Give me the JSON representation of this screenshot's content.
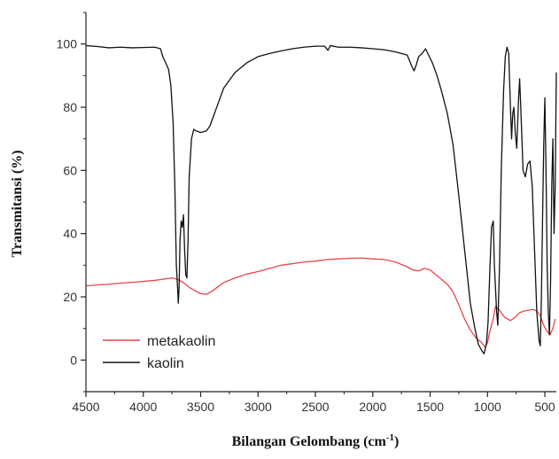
{
  "chart_data": {
    "type": "line",
    "title": "",
    "xlabel": "Bilangan Gelombang (cm",
    "xlabel_superscript": "-1",
    "xlabel_suffix": ")",
    "ylabel": "Transmitansi (%)",
    "xlim": [
      4500,
      400
    ],
    "ylim": [
      -10,
      110
    ],
    "x_reversed": true,
    "x_ticks": [
      4500,
      4000,
      3500,
      3000,
      2500,
      2000,
      1500,
      1000,
      500
    ],
    "x_tick_labels": [
      "4500",
      "4000",
      "3500",
      "3000",
      "2500",
      "2000",
      "1500",
      "1000",
      "500"
    ],
    "y_ticks": [
      0,
      20,
      40,
      60,
      80,
      100
    ],
    "y_tick_labels": [
      "0",
      "20",
      "40",
      "60",
      "80",
      "100"
    ],
    "grid": false,
    "legend_position": "bottom-left",
    "series": [
      {
        "name": "metakaolin",
        "color": "#e8464a",
        "points": [
          [
            4500,
            23.5
          ],
          [
            4300,
            24.0
          ],
          [
            4100,
            24.6
          ],
          [
            3900,
            25.2
          ],
          [
            3750,
            26.0
          ],
          [
            3700,
            25.5
          ],
          [
            3650,
            24.5
          ],
          [
            3600,
            23.0
          ],
          [
            3550,
            22.0
          ],
          [
            3500,
            21.0
          ],
          [
            3450,
            20.8
          ],
          [
            3400,
            21.8
          ],
          [
            3300,
            24.5
          ],
          [
            3200,
            26.0
          ],
          [
            3100,
            27.2
          ],
          [
            3000,
            28.0
          ],
          [
            2900,
            29.0
          ],
          [
            2800,
            30.0
          ],
          [
            2700,
            30.5
          ],
          [
            2600,
            31.0
          ],
          [
            2500,
            31.3
          ],
          [
            2400,
            31.8
          ],
          [
            2300,
            32.0
          ],
          [
            2200,
            32.2
          ],
          [
            2100,
            32.3
          ],
          [
            2000,
            32.0
          ],
          [
            1900,
            31.8
          ],
          [
            1800,
            31.0
          ],
          [
            1700,
            29.5
          ],
          [
            1650,
            28.5
          ],
          [
            1600,
            28.2
          ],
          [
            1550,
            29.0
          ],
          [
            1500,
            28.5
          ],
          [
            1450,
            27.0
          ],
          [
            1400,
            25.5
          ],
          [
            1350,
            24.0
          ],
          [
            1300,
            21.5
          ],
          [
            1250,
            17.5
          ],
          [
            1200,
            13.0
          ],
          [
            1150,
            9.5
          ],
          [
            1100,
            7.0
          ],
          [
            1050,
            5.5
          ],
          [
            1020,
            4.0
          ],
          [
            1000,
            5.5
          ],
          [
            980,
            9.0
          ],
          [
            950,
            13.0
          ],
          [
            930,
            17.0
          ],
          [
            900,
            16.0
          ],
          [
            850,
            13.5
          ],
          [
            800,
            12.5
          ],
          [
            760,
            13.5
          ],
          [
            720,
            15.0
          ],
          [
            680,
            15.5
          ],
          [
            640,
            15.8
          ],
          [
            600,
            16.0
          ],
          [
            570,
            15.5
          ],
          [
            540,
            14.0
          ],
          [
            510,
            11.0
          ],
          [
            480,
            9.0
          ],
          [
            455,
            8.0
          ],
          [
            430,
            10.0
          ],
          [
            410,
            13.0
          ]
        ]
      },
      {
        "name": "kaolin",
        "color": "#111111",
        "points": [
          [
            4500,
            99.5
          ],
          [
            4400,
            99.2
          ],
          [
            4300,
            98.8
          ],
          [
            4200,
            99.0
          ],
          [
            4100,
            98.8
          ],
          [
            4000,
            98.9
          ],
          [
            3900,
            99.0
          ],
          [
            3850,
            98.5
          ],
          [
            3830,
            96.0
          ],
          [
            3810,
            94.5
          ],
          [
            3780,
            92.0
          ],
          [
            3760,
            87.0
          ],
          [
            3740,
            75.0
          ],
          [
            3725,
            55.0
          ],
          [
            3712,
            30.0
          ],
          [
            3700,
            22.0
          ],
          [
            3695,
            18.0
          ],
          [
            3688,
            23.0
          ],
          [
            3680,
            38.0
          ],
          [
            3670,
            44.0
          ],
          [
            3660,
            42.0
          ],
          [
            3650,
            46.0
          ],
          [
            3640,
            35.0
          ],
          [
            3630,
            27.0
          ],
          [
            3620,
            26.0
          ],
          [
            3610,
            38.0
          ],
          [
            3600,
            58.0
          ],
          [
            3580,
            70.0
          ],
          [
            3560,
            73.0
          ],
          [
            3540,
            72.5
          ],
          [
            3500,
            72.0
          ],
          [
            3450,
            72.5
          ],
          [
            3420,
            74.0
          ],
          [
            3350,
            81.0
          ],
          [
            3300,
            86.0
          ],
          [
            3200,
            91.0
          ],
          [
            3100,
            94.0
          ],
          [
            3000,
            96.0
          ],
          [
            2900,
            97.0
          ],
          [
            2800,
            97.8
          ],
          [
            2700,
            98.5
          ],
          [
            2600,
            99.0
          ],
          [
            2500,
            99.3
          ],
          [
            2420,
            99.3
          ],
          [
            2390,
            98.0
          ],
          [
            2370,
            99.5
          ],
          [
            2300,
            99.0
          ],
          [
            2200,
            99.0
          ],
          [
            2100,
            98.8
          ],
          [
            2000,
            98.5
          ],
          [
            1900,
            98.2
          ],
          [
            1800,
            97.5
          ],
          [
            1700,
            96.5
          ],
          [
            1660,
            93.0
          ],
          [
            1640,
            91.5
          ],
          [
            1620,
            93.5
          ],
          [
            1600,
            96.0
          ],
          [
            1570,
            97.0
          ],
          [
            1540,
            98.5
          ],
          [
            1520,
            97.0
          ],
          [
            1480,
            94.0
          ],
          [
            1440,
            90.0
          ],
          [
            1400,
            85.0
          ],
          [
            1350,
            78.0
          ],
          [
            1300,
            68.0
          ],
          [
            1250,
            52.0
          ],
          [
            1200,
            35.0
          ],
          [
            1150,
            18.0
          ],
          [
            1110,
            10.0
          ],
          [
            1080,
            5.0
          ],
          [
            1050,
            3.0
          ],
          [
            1030,
            2.0
          ],
          [
            1010,
            5.0
          ],
          [
            995,
            12.0
          ],
          [
            980,
            28.0
          ],
          [
            965,
            42.0
          ],
          [
            950,
            44.0
          ],
          [
            940,
            30.0
          ],
          [
            920,
            15.0
          ],
          [
            910,
            11.0
          ],
          [
            895,
            30.0
          ],
          [
            880,
            60.0
          ],
          [
            860,
            85.0
          ],
          [
            845,
            96.0
          ],
          [
            830,
            99.0
          ],
          [
            815,
            97.0
          ],
          [
            800,
            80.0
          ],
          [
            790,
            70.0
          ],
          [
            780,
            78.0
          ],
          [
            770,
            80.0
          ],
          [
            758,
            72.0
          ],
          [
            745,
            67.0
          ],
          [
            730,
            82.0
          ],
          [
            720,
            89.0
          ],
          [
            710,
            80.0
          ],
          [
            700,
            70.0
          ],
          [
            690,
            60.0
          ],
          [
            670,
            58.0
          ],
          [
            650,
            62.0
          ],
          [
            630,
            63.0
          ],
          [
            610,
            55.0
          ],
          [
            590,
            35.0
          ],
          [
            570,
            15.0
          ],
          [
            550,
            6.0
          ],
          [
            540,
            4.5
          ],
          [
            530,
            20.0
          ],
          [
            520,
            45.0
          ],
          [
            510,
            68.0
          ],
          [
            500,
            83.0
          ],
          [
            490,
            60.0
          ],
          [
            480,
            30.0
          ],
          [
            470,
            15.0
          ],
          [
            460,
            8.0
          ],
          [
            450,
            25.0
          ],
          [
            440,
            55.0
          ],
          [
            430,
            70.0
          ],
          [
            420,
            40.0
          ],
          [
            410,
            55.0
          ],
          [
            400,
            91.0
          ]
        ]
      }
    ]
  }
}
